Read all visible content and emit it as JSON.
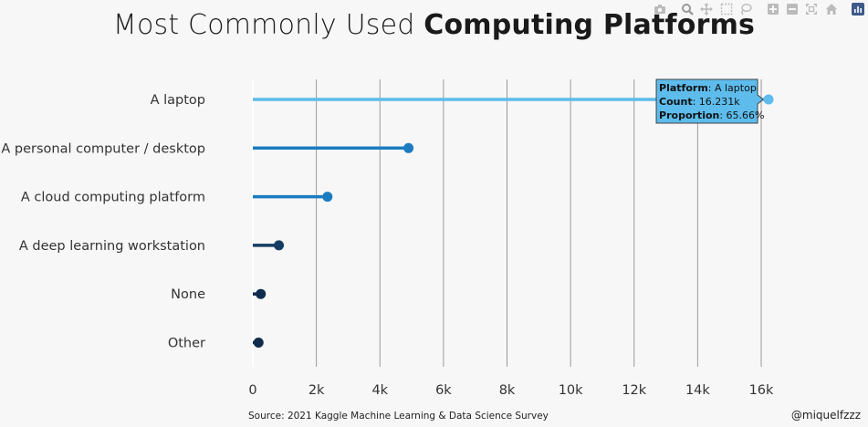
{
  "title": {
    "light": "Most Commonly Used ",
    "bold": "Computing Platforms"
  },
  "footer": {
    "source": "Source: 2021 Kaggle Machine Learning & Data Science Survey",
    "credit": "@miquelfzzz"
  },
  "modebar": [
    "camera-icon",
    "zoom-icon",
    "pan-icon",
    "box-select-icon",
    "lasso-icon",
    "zoom-in-icon",
    "zoom-out-icon",
    "autoscale-icon",
    "reset-axes-icon",
    "plotly-logo-icon"
  ],
  "chart_data": {
    "type": "lollipop",
    "categories": [
      "A laptop",
      "A personal computer / desktop",
      "A cloud computing platform",
      "A deep learning workstation",
      "None",
      "Other"
    ],
    "values": [
      16231,
      4900,
      2350,
      820,
      250,
      180
    ],
    "colors": [
      "#5dbcec",
      "#1b7cc1",
      "#1b7cc1",
      "#153d62",
      "#0f2c4c",
      "#0f2c4c"
    ],
    "xlim": [
      0,
      16000
    ],
    "xticks": [
      0,
      2000,
      4000,
      6000,
      8000,
      10000,
      12000,
      14000,
      16000
    ],
    "xtick_labels": [
      "0",
      "2k",
      "4k",
      "6k",
      "8k",
      "10k",
      "12k",
      "14k",
      "16k"
    ],
    "grid": true,
    "hover": {
      "category": "A laptop",
      "lines": [
        {
          "label": "Platform",
          "value": ": A laptop"
        },
        {
          "label": "Count",
          "value": ": 16.231k"
        },
        {
          "label": "Proportion",
          "value": ": 65.66%"
        }
      ]
    }
  }
}
